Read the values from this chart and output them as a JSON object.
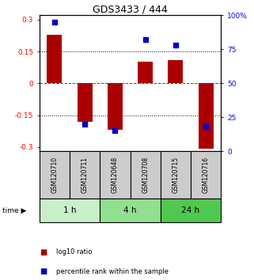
{
  "title": "GDS3433 / 444",
  "samples": [
    "GSM120710",
    "GSM120711",
    "GSM120648",
    "GSM120708",
    "GSM120715",
    "GSM120716"
  ],
  "log10_ratio": [
    0.23,
    -0.18,
    -0.22,
    0.1,
    0.11,
    -0.31
  ],
  "percentile_rank": [
    95,
    20,
    15,
    82,
    78,
    18
  ],
  "groups": [
    {
      "label": "1 h",
      "start": 0,
      "end": 2,
      "color": "#c8f0c8"
    },
    {
      "label": "4 h",
      "start": 2,
      "end": 4,
      "color": "#90e090"
    },
    {
      "label": "24 h",
      "start": 4,
      "end": 6,
      "color": "#50c850"
    }
  ],
  "bar_color": "#aa0000",
  "dot_color": "#0000cc",
  "ylim_left": [
    -0.32,
    0.32
  ],
  "ylim_right": [
    0,
    100
  ],
  "yticks_left": [
    -0.3,
    -0.15,
    0,
    0.15,
    0.3
  ],
  "yticks_right": [
    0,
    25,
    50,
    75,
    100
  ],
  "ytick_labels_left": [
    "-0.3",
    "-0.15",
    "0",
    "0.15",
    "0.3"
  ],
  "ytick_labels_right": [
    "0",
    "25",
    "50",
    "75",
    "100%"
  ],
  "hlines": [
    -0.15,
    0,
    0.15
  ],
  "hline_styles": [
    "dotted",
    "dashed",
    "dotted"
  ],
  "hline_colors": [
    "black",
    "red",
    "black"
  ],
  "bar_width": 0.5,
  "dot_size": 25,
  "sample_box_color": "#cccccc",
  "legend_bar_label": "log10 ratio",
  "legend_dot_label": "percentile rank within the sample",
  "time_label": "time"
}
